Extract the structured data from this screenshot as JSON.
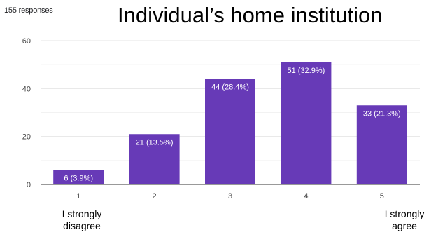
{
  "header": {
    "responses": "155 responses",
    "title": "Individual’s home institution"
  },
  "colors": {
    "bar": "#673ab7",
    "grid": "#e6e6e6",
    "axis": "#333333"
  },
  "annotations": {
    "low": "I strongly disagree",
    "high": "I strongly agree"
  },
  "chart_data": {
    "type": "bar",
    "categories": [
      "1",
      "2",
      "3",
      "4",
      "5"
    ],
    "values": [
      6,
      21,
      44,
      51,
      33
    ],
    "data_labels": [
      "6 (3.9%)",
      "21 (13.5%)",
      "44 (28.4%)",
      "51 (32.9%)",
      "33 (21.3%)"
    ],
    "title": "Individual’s home institution",
    "xlabel": "",
    "ylabel": "",
    "ylim": [
      0,
      60
    ],
    "yticks": [
      0,
      20,
      40,
      60
    ],
    "grid": true,
    "legend": "none"
  }
}
